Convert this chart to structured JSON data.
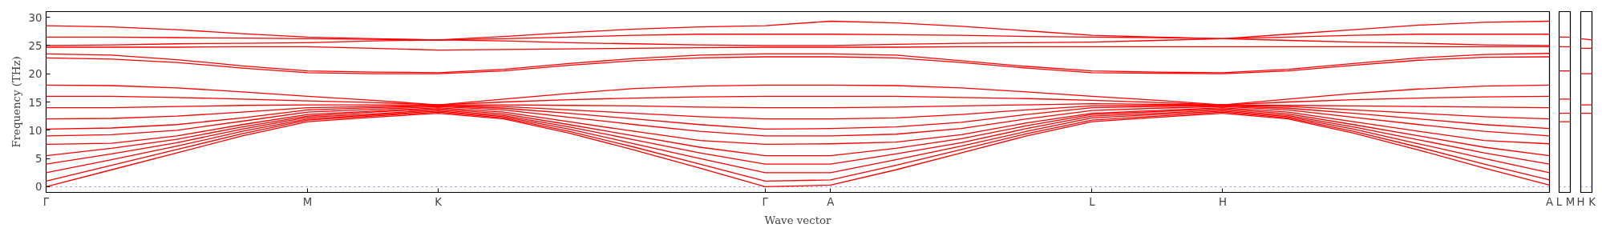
{
  "chart_data": [
    {
      "type": "line",
      "xlabel": "Wave vector",
      "ylabel": "Frequency (THz)",
      "categories": [
        "Γ",
        null,
        null,
        null,
        "M",
        null,
        "K",
        null,
        null,
        null,
        null,
        "Γ",
        "A",
        null,
        null,
        null,
        "L",
        null,
        "H",
        null,
        null,
        null,
        null,
        "A"
      ],
      "ylim": [
        -1,
        31
      ],
      "yticks": [
        0,
        5,
        10,
        15,
        20,
        25,
        30
      ],
      "grid": false,
      "line_style": "solid",
      "ref_lines": [
        {
          "axis": "y",
          "value": 0,
          "label": null,
          "color": "#8080ff",
          "line_style": "dotted"
        }
      ],
      "series": [
        {
          "color": "#ff0000",
          "values": [
            0,
            3,
            6,
            9,
            11.5,
            12.3,
            13,
            12,
            9.5,
            6.5,
            3.3,
            0,
            0.3,
            3,
            6,
            9,
            11.5,
            12.3,
            13,
            12,
            9.5,
            6.5,
            3.3,
            0.3
          ]
        },
        {
          "color": "#ff0000",
          "values": [
            1,
            3.8,
            6.6,
            9.4,
            11.8,
            12.5,
            13.2,
            12.2,
            9.8,
            7,
            4,
            1,
            1.2,
            3.8,
            6.6,
            9.4,
            11.8,
            12.5,
            13.2,
            12.2,
            9.8,
            7,
            4,
            1.2
          ]
        },
        {
          "color": "#ff0000",
          "values": [
            2.5,
            4.8,
            7.2,
            9.8,
            12,
            12.7,
            13.4,
            12.4,
            10.2,
            7.6,
            5,
            2.5,
            2.5,
            4.8,
            7.2,
            9.8,
            12.2,
            12.8,
            13.4,
            12.4,
            10.2,
            7.6,
            5,
            2.5
          ]
        },
        {
          "color": "#ff0000",
          "values": [
            4,
            5.8,
            7.8,
            10.2,
            12.3,
            12.9,
            13.6,
            12.6,
            10.6,
            8.3,
            6,
            4,
            4,
            5.8,
            7.8,
            10.3,
            12.5,
            13,
            13.6,
            12.6,
            10.6,
            8.3,
            6,
            4
          ]
        },
        {
          "color": "#ff0000",
          "values": [
            5.5,
            6.8,
            8.4,
            10.6,
            12.5,
            13.2,
            13.8,
            12.9,
            11,
            9,
            7,
            5.5,
            5.5,
            6.8,
            8.5,
            10.8,
            12.8,
            13.3,
            13.8,
            12.9,
            11,
            9,
            7,
            5.5
          ]
        },
        {
          "color": "#ff0000",
          "values": [
            7.5,
            7.7,
            9,
            11,
            12.8,
            13.4,
            14,
            13.2,
            11.5,
            9.8,
            8.2,
            7.5,
            7.6,
            7.9,
            9.2,
            11.3,
            13,
            13.5,
            14,
            13.2,
            11.5,
            9.8,
            8.2,
            7.6
          ]
        },
        {
          "color": "#ff0000",
          "values": [
            9,
            9.2,
            10,
            11.6,
            13.2,
            13.7,
            14.2,
            13.6,
            12.3,
            11,
            9.8,
            9,
            9,
            9.3,
            10.3,
            12,
            13.5,
            13.9,
            14.2,
            13.6,
            12.3,
            11,
            9.8,
            9
          ]
        },
        {
          "color": "#ff0000",
          "values": [
            10.2,
            10.4,
            11,
            12.2,
            13.6,
            14,
            14.3,
            13.9,
            13,
            12,
            11,
            10.2,
            10.3,
            10.6,
            11.4,
            12.8,
            14,
            14.2,
            14.3,
            13.9,
            13,
            12,
            11,
            10.3
          ]
        },
        {
          "color": "#ff0000",
          "values": [
            12,
            12.1,
            12.5,
            13.2,
            14,
            14.2,
            14.4,
            14.2,
            13.6,
            13,
            12.4,
            12,
            12,
            12.2,
            12.8,
            13.6,
            14.3,
            14.4,
            14.4,
            14.2,
            13.6,
            13,
            12.4,
            12
          ]
        },
        {
          "color": "#ff0000",
          "values": [
            14,
            14,
            14.2,
            14.4,
            14.5,
            14.5,
            14.5,
            14.5,
            14.4,
            14.3,
            14.1,
            14,
            14,
            14.1,
            14.3,
            14.5,
            14.7,
            14.6,
            14.5,
            14.4,
            14.3,
            14.2,
            14.1,
            14
          ]
        },
        {
          "color": "#ff0000",
          "values": [
            16,
            16,
            15.8,
            15.5,
            15.2,
            14.9,
            14.5,
            15,
            15.4,
            15.7,
            15.9,
            16,
            16,
            16,
            15.8,
            15.6,
            15.3,
            14.9,
            14.5,
            15,
            15.4,
            15.7,
            15.9,
            16
          ]
        },
        {
          "color": "#ff0000",
          "values": [
            18,
            17.9,
            17.5,
            16.8,
            16,
            15.3,
            14.5,
            15.5,
            16.5,
            17.4,
            17.8,
            18,
            18,
            17.9,
            17.5,
            16.8,
            16,
            15.3,
            14.5,
            15.5,
            16.5,
            17.3,
            17.8,
            18
          ]
        },
        {
          "color": "#ff0000",
          "values": [
            23.5,
            23.3,
            22.5,
            21.4,
            20.5,
            20.3,
            20.2,
            20.8,
            21.8,
            22.7,
            23.3,
            23.5,
            23.5,
            23.3,
            22.3,
            21.3,
            20.5,
            20.3,
            20.2,
            20.8,
            21.8,
            22.8,
            23.4,
            23.6
          ]
        },
        {
          "color": "#ff0000",
          "values": [
            22.8,
            22.6,
            22,
            21,
            20.2,
            20,
            20,
            20.5,
            21.5,
            22.3,
            22.8,
            23,
            23,
            22.8,
            22,
            21,
            20.2,
            20.1,
            20,
            20.5,
            21.5,
            22.4,
            22.9,
            23
          ]
        },
        {
          "color": "#ff0000",
          "values": [
            24.7,
            24.7,
            24.7,
            24.8,
            24.8,
            24.5,
            24.2,
            24.3,
            24.4,
            24.5,
            24.6,
            24.7,
            24.7,
            24.7,
            24.8,
            24.8,
            24.8,
            24.8,
            24.8,
            24.8,
            24.8,
            24.8,
            24.8,
            24.8
          ]
        },
        {
          "color": "#ff0000",
          "values": [
            25,
            25.1,
            25.3,
            25.4,
            25.5,
            25.8,
            26,
            25.8,
            25.5,
            25.3,
            25.1,
            25,
            25,
            25.2,
            25.4,
            25.5,
            25.6,
            25.9,
            26.2,
            25.9,
            25.6,
            25.4,
            25.1,
            25
          ]
        },
        {
          "color": "#ff0000",
          "values": [
            26.5,
            26.5,
            26.4,
            26.3,
            26.2,
            26.1,
            26,
            26.2,
            26.5,
            26.8,
            27,
            27,
            27,
            26.9,
            26.8,
            26.6,
            26.5,
            26.4,
            26.2,
            26.5,
            26.8,
            27,
            27,
            27
          ]
        },
        {
          "color": "#ff0000",
          "values": [
            28.5,
            28.3,
            27.8,
            27.1,
            26.5,
            26.2,
            26,
            26.6,
            27.3,
            27.9,
            28.3,
            28.5,
            29.3,
            29,
            28.4,
            27.6,
            26.8,
            26.5,
            26.2,
            27,
            27.8,
            28.6,
            29.1,
            29.3
          ]
        }
      ]
    },
    {
      "type": "line",
      "categories": [
        "L",
        "M"
      ],
      "ylim": [
        -1,
        31
      ],
      "yticks": [
        0,
        5,
        10,
        15,
        20,
        25,
        30
      ],
      "tick_labels": "x",
      "grid": "x",
      "line_style": "solid",
      "ref_lines": [
        {
          "axis": "y",
          "value": 0,
          "label": null,
          "color": "#8080ff",
          "line_style": "dotted"
        }
      ],
      "series": [
        {
          "color": "#ff0000",
          "values": [
            11.5,
            11.5
          ]
        },
        {
          "color": "#ff0000",
          "values": [
            13,
            13
          ]
        },
        {
          "color": "#ff0000",
          "values": [
            15.5,
            15.5
          ]
        },
        {
          "color": "#ff0000",
          "values": [
            20.5,
            20.5
          ]
        },
        {
          "color": "#ff0000",
          "values": [
            24.8,
            24.8
          ]
        },
        {
          "color": "#ff0000",
          "values": [
            26.5,
            26.5
          ]
        }
      ]
    },
    {
      "type": "line",
      "categories": [
        "H",
        "K"
      ],
      "ylim": [
        -1,
        31
      ],
      "yticks": [
        0,
        5,
        10,
        15,
        20,
        25,
        30
      ],
      "tick_labels": "x",
      "grid": "x",
      "line_style": "solid",
      "ref_lines": [
        {
          "axis": "y",
          "value": 0,
          "label": null,
          "color": "#8080ff",
          "line_style": "dotted"
        }
      ],
      "series": [
        {
          "color": "#ff0000",
          "values": [
            13,
            13
          ]
        },
        {
          "color": "#ff0000",
          "values": [
            14.5,
            14.5
          ]
        },
        {
          "color": "#ff0000",
          "values": [
            20,
            20
          ]
        },
        {
          "color": "#ff0000",
          "values": [
            24.5,
            24.5
          ]
        },
        {
          "color": "#ff0000",
          "values": [
            26.2,
            26
          ]
        }
      ]
    }
  ]
}
